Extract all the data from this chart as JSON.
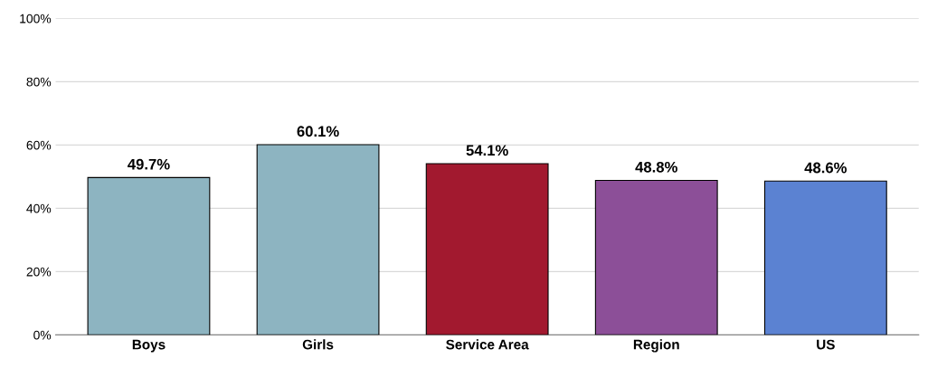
{
  "chart_data": {
    "type": "bar",
    "categories": [
      "Boys",
      "Girls",
      "Service Area",
      "Region",
      "US"
    ],
    "values": [
      49.7,
      60.1,
      54.1,
      48.8,
      48.6
    ],
    "colors": [
      "#8db4c1",
      "#8db4c1",
      "#a2192f",
      "#8c4f98",
      "#5b82d2"
    ],
    "value_labels": [
      "49.7%",
      "60.1%",
      "54.1%",
      "48.8%",
      "48.6%"
    ],
    "ylim": [
      0,
      100
    ],
    "yticks": [
      {
        "value": 0,
        "label": "0%"
      },
      {
        "value": 20,
        "label": "20%"
      },
      {
        "value": 40,
        "label": "40%"
      },
      {
        "value": 60,
        "label": "60%"
      },
      {
        "value": 80,
        "label": "80%"
      },
      {
        "value": 100,
        "label": "100%"
      }
    ],
    "grid": "y"
  }
}
